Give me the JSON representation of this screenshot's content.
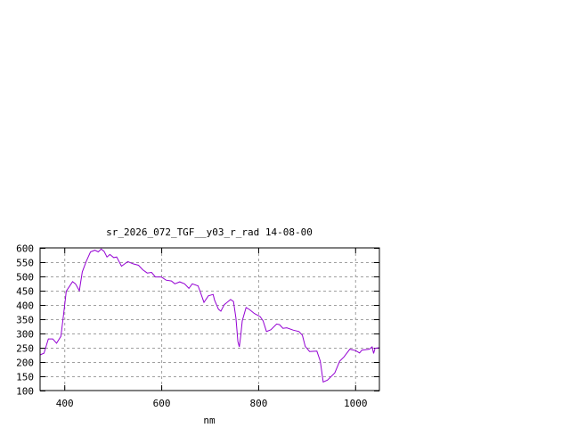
{
  "chart_data": {
    "type": "line",
    "title": "sr_2026_072_TGF__y03_r_rad 14-08-00",
    "xlabel": "nm",
    "ylabel": "",
    "xlim": [
      350,
      1050
    ],
    "ylim": [
      100,
      600
    ],
    "xticks": [
      400,
      600,
      800,
      1000
    ],
    "yticks": [
      100,
      150,
      200,
      250,
      300,
      350,
      400,
      450,
      500,
      550,
      600
    ],
    "grid": true,
    "line_color": "#9400d3",
    "series": [
      {
        "x": [
          350,
          358,
          367,
          376,
          384,
          393,
          399,
          404,
          417,
          423,
          431,
          437,
          445,
          454,
          463,
          470,
          476,
          482,
          488,
          494,
          502,
          508,
          518,
          531,
          542,
          553,
          562,
          571,
          580,
          588,
          600,
          610,
          621,
          628,
          638,
          648,
          657,
          664,
          676,
          681,
          688,
          697,
          707,
          710,
          718,
          723,
          730,
          743,
          749,
          754,
          758,
          761,
          764,
          767,
          775,
          782,
          792,
          804,
          810,
          817,
          826,
          838,
          844,
          851,
          859,
          872,
          884,
          891,
          897,
          906,
          921,
          928,
          934,
          943,
          958,
          968,
          977,
          989,
          1001,
          1009,
          1014,
          1029,
          1035,
          1038,
          1041,
          1049
        ],
        "y": [
          225,
          231,
          281,
          281,
          266,
          290,
          375,
          448,
          482,
          474,
          450,
          516,
          552,
          586,
          592,
          586,
          596,
          588,
          568,
          577,
          566,
          568,
          536,
          552,
          544,
          539,
          523,
          512,
          514,
          498,
          498,
          487,
          484,
          474,
          481,
          474,
          458,
          474,
          467,
          443,
          409,
          432,
          437,
          417,
          385,
          378,
          401,
          419,
          412,
          354,
          272,
          253,
          292,
          344,
          391,
          384,
          370,
          359,
          344,
          307,
          313,
          333,
          331,
          318,
          320,
          312,
          307,
          294,
          255,
          237,
          238,
          203,
          130,
          137,
          162,
          203,
          218,
          245,
          240,
          232,
          242,
          245,
          253,
          230,
          248,
          250
        ]
      }
    ]
  }
}
